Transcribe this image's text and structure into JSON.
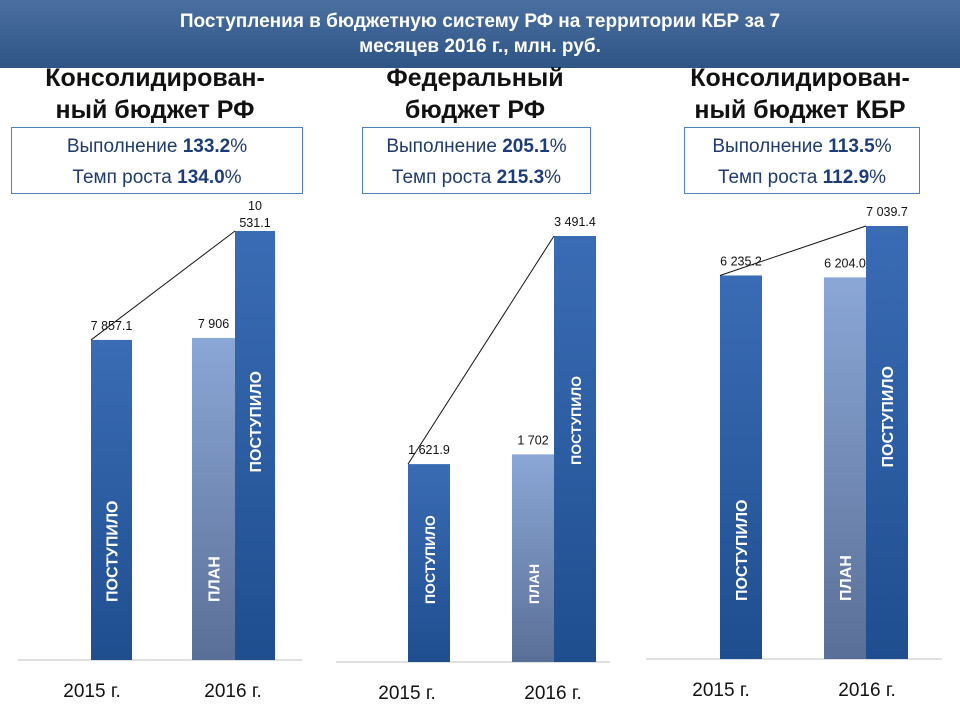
{
  "header": {
    "line1": "Поступления в бюджетную систему РФ на территории КБР за 7",
    "line2": "месяцев 2016 г., млн. руб."
  },
  "panels": [
    {
      "title_line1": "Консолидирован-",
      "title_line2": "ный бюджет РФ",
      "kpi_exec_label": "Выполнение ",
      "kpi_exec_value": "133.2",
      "kpi_growth_label": "Темп роста ",
      "kpi_growth_value": "134.0",
      "percent": "%"
    },
    {
      "title_line1": "Федеральный",
      "title_line2": "бюджет РФ",
      "kpi_exec_label": "Выполнение ",
      "kpi_exec_value": "205.1",
      "kpi_growth_label": "Темп роста ",
      "kpi_growth_value": "215.3",
      "percent": "%"
    },
    {
      "title_line1": "Консолидирован-",
      "title_line2": "ный бюджет КБР",
      "kpi_exec_label": "Выполнение ",
      "kpi_exec_value": "113.5",
      "kpi_growth_label": "Темп роста ",
      "kpi_growth_value": "112.9",
      "percent": "%"
    }
  ],
  "colors": {
    "received_dark": "#1f4e8f",
    "received_light": "#3a6cb5",
    "plan_dark": "#5a6f97",
    "plan_light": "#8ba7d6",
    "header": "#3a5f93",
    "kpi_border": "#4f81bd"
  },
  "chart_data": [
    {
      "type": "bar",
      "categories": [
        "2015 г.",
        "2016 г."
      ],
      "bars": [
        {
          "category": "2015 г.",
          "kind": "received",
          "value": 7857.1,
          "value_label": "7 857.1",
          "bar_label": "ПОСТУПИЛО"
        },
        {
          "category": "2016 г.",
          "kind": "plan",
          "value": 7906,
          "value_label": "7 906",
          "bar_label": "ПЛАН"
        },
        {
          "category": "2016 г.",
          "kind": "received",
          "value": 10531.1,
          "value_label_lines": [
            "10",
            "531.1"
          ],
          "bar_label": "ПОСТУПИЛО"
        }
      ]
    },
    {
      "type": "bar",
      "categories": [
        "2015 г.",
        "2016 г."
      ],
      "bars": [
        {
          "category": "2015 г.",
          "kind": "received",
          "value": 1621.9,
          "value_label": "1 621.9",
          "bar_label": "ПОСТУПИЛО"
        },
        {
          "category": "2016 г.",
          "kind": "plan",
          "value": 1702,
          "value_label": "1 702",
          "bar_label": "ПЛАН"
        },
        {
          "category": "2016 г.",
          "kind": "received",
          "value": 3491.4,
          "value_label": "3 491.4",
          "bar_label": "ПОСТУПИЛО"
        }
      ]
    },
    {
      "type": "bar",
      "categories": [
        "2015 г.",
        "2016 г."
      ],
      "bars": [
        {
          "category": "2015 г.",
          "kind": "received",
          "value": 6235.2,
          "value_label": "6 235.2",
          "bar_label": "ПОСТУПИЛО"
        },
        {
          "category": "2016 г.",
          "kind": "plan",
          "value": 6204.0,
          "value_label": "6 204.0",
          "bar_label": "ПЛАН"
        },
        {
          "category": "2016 г.",
          "kind": "received",
          "value": 7039.7,
          "value_label": "7 039.7",
          "bar_label": "ПОСТУПИЛО"
        }
      ]
    }
  ]
}
